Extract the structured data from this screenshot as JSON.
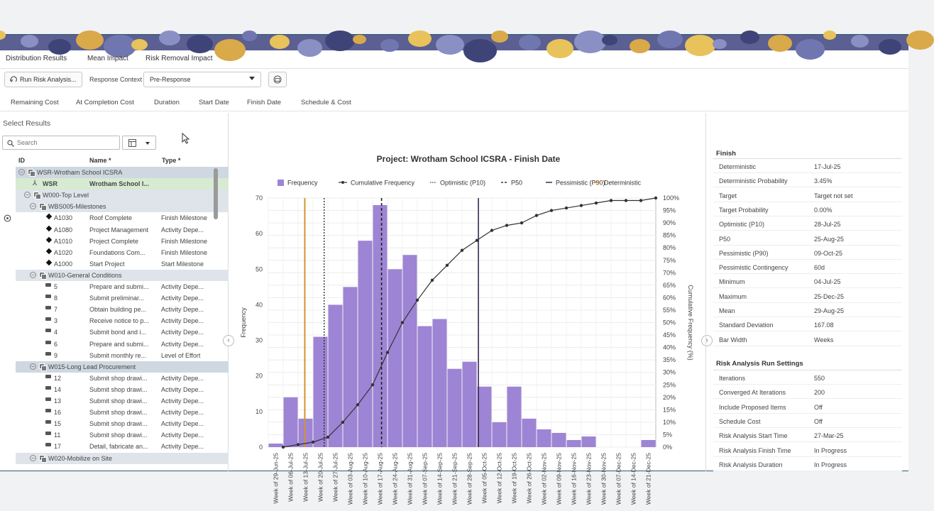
{
  "top_tabs": [
    {
      "label": "Distribution Results",
      "active": true
    },
    {
      "label": "Mean Impact",
      "active": false
    },
    {
      "label": "Risk Removal Impact",
      "active": false
    }
  ],
  "toolbar": {
    "run_label": "Run Risk Analysis...",
    "context_label": "Response Context",
    "context_value": "Pre-Response"
  },
  "sub_tabs": [
    {
      "label": "Remaining Cost",
      "active": false
    },
    {
      "label": "At Completion Cost",
      "active": false
    },
    {
      "label": "Duration",
      "active": false
    },
    {
      "label": "Start Date",
      "active": false
    },
    {
      "label": "Finish Date",
      "active": true
    },
    {
      "label": "Schedule & Cost",
      "active": false
    }
  ],
  "left": {
    "title": "Select Results",
    "search_placeholder": "Search",
    "col_id": "ID",
    "col_name": "Name *",
    "col_type": "Type *",
    "rows": [
      {
        "kind": "group1",
        "indent": 0,
        "id": "WSR-Wrotham School ICSRA",
        "name": "",
        "type": ""
      },
      {
        "kind": "sel",
        "indent": 1,
        "id": "WSR",
        "name": "Wrotham School I...",
        "type": ""
      },
      {
        "kind": "group",
        "indent": 1,
        "id": "W000-Top Level",
        "name": "",
        "type": ""
      },
      {
        "kind": "group",
        "indent": 2,
        "id": "WBS005-Milestones",
        "name": "",
        "type": ""
      },
      {
        "kind": "ms",
        "indent": 3,
        "id": "A1030",
        "name": "Roof Complete",
        "type": "Finish Milestone"
      },
      {
        "kind": "ms",
        "indent": 3,
        "id": "A1080",
        "name": "Project Management",
        "type": "Activity Depe..."
      },
      {
        "kind": "ms",
        "indent": 3,
        "id": "A1010",
        "name": "Project Complete",
        "type": "Finish Milestone"
      },
      {
        "kind": "ms",
        "indent": 3,
        "id": "A1020",
        "name": "Foundations Com...",
        "type": "Finish Milestone"
      },
      {
        "kind": "ms",
        "indent": 3,
        "id": "A1000",
        "name": "Start Project",
        "type": "Start Milestone"
      },
      {
        "kind": "group",
        "indent": 2,
        "id": "W010-General Conditions",
        "name": "",
        "type": ""
      },
      {
        "kind": "act",
        "indent": 3,
        "id": "5",
        "name": "Prepare and submi...",
        "type": "Activity Depe..."
      },
      {
        "kind": "act",
        "indent": 3,
        "id": "8",
        "name": "Submit preliminar...",
        "type": "Activity Depe..."
      },
      {
        "kind": "act",
        "indent": 3,
        "id": "7",
        "name": "Obtain building pe...",
        "type": "Activity Depe..."
      },
      {
        "kind": "act",
        "indent": 3,
        "id": "3",
        "name": "Receive notice to p...",
        "type": "Activity Depe..."
      },
      {
        "kind": "act",
        "indent": 3,
        "id": "4",
        "name": "Submit bond and i...",
        "type": "Activity Depe..."
      },
      {
        "kind": "act",
        "indent": 3,
        "id": "6",
        "name": "Prepare and submi...",
        "type": "Activity Depe..."
      },
      {
        "kind": "act",
        "indent": 3,
        "id": "9",
        "name": "Submit monthly re...",
        "type": "Level of Effort"
      },
      {
        "kind": "group1",
        "indent": 2,
        "id": "W015-Long Lead Procurement",
        "name": "",
        "type": ""
      },
      {
        "kind": "act",
        "indent": 3,
        "id": "12",
        "name": "Submit shop drawi...",
        "type": "Activity Depe..."
      },
      {
        "kind": "act",
        "indent": 3,
        "id": "14",
        "name": "Submit shop drawi...",
        "type": "Activity Depe..."
      },
      {
        "kind": "act",
        "indent": 3,
        "id": "13",
        "name": "Submit shop drawi...",
        "type": "Activity Depe..."
      },
      {
        "kind": "act",
        "indent": 3,
        "id": "16",
        "name": "Submit shop drawi...",
        "type": "Activity Depe..."
      },
      {
        "kind": "act",
        "indent": 3,
        "id": "15",
        "name": "Submit shop drawi...",
        "type": "Activity Depe..."
      },
      {
        "kind": "act",
        "indent": 3,
        "id": "11",
        "name": "Submit shop drawi...",
        "type": "Activity Depe..."
      },
      {
        "kind": "act",
        "indent": 3,
        "id": "17",
        "name": "Detail, fabricate an...",
        "type": "Activity Depe..."
      },
      {
        "kind": "group",
        "indent": 2,
        "id": "W020-Mobilize on Site",
        "name": "",
        "type": ""
      }
    ]
  },
  "right": {
    "finish_title": "Finish",
    "finish": [
      {
        "k": "Deterministic",
        "v": "17-Jul-25"
      },
      {
        "k": "Deterministic Probability",
        "v": "3.45%"
      },
      {
        "k": "Target",
        "v": "Target not set"
      },
      {
        "k": "Target Probability",
        "v": "0.00%"
      },
      {
        "k": "Optimistic (P10)",
        "v": "28-Jul-25"
      },
      {
        "k": "P50",
        "v": "25-Aug-25"
      },
      {
        "k": "Pessimistic (P90)",
        "v": "09-Oct-25"
      },
      {
        "k": "Pessimistic Contingency",
        "v": "60d"
      },
      {
        "k": "Minimum",
        "v": "04-Jul-25"
      },
      {
        "k": "Maximum",
        "v": "25-Dec-25"
      },
      {
        "k": "Mean",
        "v": "29-Aug-25"
      },
      {
        "k": "Standard Deviation",
        "v": "167.08"
      },
      {
        "k": "Bar Width",
        "v": "Weeks"
      }
    ],
    "run_title": "Risk Analysis Run Settings",
    "run": [
      {
        "k": "Iterations",
        "v": "550"
      },
      {
        "k": "Converged At Iterations",
        "v": "200"
      },
      {
        "k": "Include Proposed Items",
        "v": "Off"
      },
      {
        "k": "Schedule Cost",
        "v": "Off"
      },
      {
        "k": "Risk Analysis Start Time",
        "v": "27-Mar-25"
      },
      {
        "k": "Risk Analysis Finish Time",
        "v": "In Progress"
      },
      {
        "k": "Risk Analysis Duration",
        "v": "In Progress"
      }
    ]
  },
  "chart_data": {
    "type": "bar",
    "title": "Project: Wrotham School ICSRA - Finish Date",
    "ylabel": "Frequency",
    "y2label": "Cumulative Frequency (%)",
    "ylim": [
      0,
      70
    ],
    "y2lim": [
      0,
      100
    ],
    "yticks": [
      "0",
      "10",
      "20",
      "30",
      "40",
      "50",
      "60",
      "70"
    ],
    "y2ticks": [
      "0%",
      "5%",
      "10%",
      "15%",
      "20%",
      "25%",
      "30%",
      "35%",
      "40%",
      "45%",
      "50%",
      "55%",
      "60%",
      "65%",
      "70%",
      "75%",
      "80%",
      "85%",
      "90%",
      "95%",
      "100%"
    ],
    "legend": [
      "Frequency",
      "Cumulative Frequency",
      "Optimistic (P10)",
      "P50",
      "Pessimistic (P90)",
      "Deterministic"
    ],
    "categories": [
      "Week of 29-Jun-25",
      "Week of 06-Jul-25",
      "Week of 13-Jul-25",
      "Week of 20-Jul-25",
      "Week of 27-Jul-25",
      "Week of 03-Aug-25",
      "Week of 10-Aug-25",
      "Week of 17-Aug-25",
      "Week of 24-Aug-25",
      "Week of 31-Aug-25",
      "Week of 07-Sep-25",
      "Week of 14-Sep-25",
      "Week of 21-Sep-25",
      "Week of 28-Sep-25",
      "Week of 05-Oct-25",
      "Week of 12-Oct-25",
      "Week of 19-Oct-25",
      "Week of 26-Oct-25",
      "Week of 02-Nov-25",
      "Week of 09-Nov-25",
      "Week of 16-Nov-25",
      "Week of 23-Nov-25",
      "Week of 30-Nov-25",
      "Week of 07-Dec-25",
      "Week of 14-Dec-25",
      "Week of 21-Dec-25"
    ],
    "values": [
      1,
      14,
      8,
      31,
      40,
      45,
      58,
      68,
      50,
      54,
      34,
      36,
      22,
      24,
      17,
      7,
      17,
      8,
      5,
      4,
      2,
      3,
      0,
      0,
      0,
      2
    ],
    "cumulative": [
      0,
      1,
      2,
      4,
      10,
      17,
      25,
      38,
      50,
      59,
      67,
      73,
      79,
      83,
      87,
      89,
      90,
      93,
      95,
      96,
      97,
      98,
      99,
      99,
      99,
      100
    ],
    "markers": {
      "p10": 3.75,
      "p50": 7.6,
      "p90": 14.1,
      "deterministic": 2.45
    },
    "colors": {
      "bar": "#9e84d4",
      "line": "#333333",
      "deterministic": "#d4932e",
      "p90": "#3a2a55"
    }
  }
}
